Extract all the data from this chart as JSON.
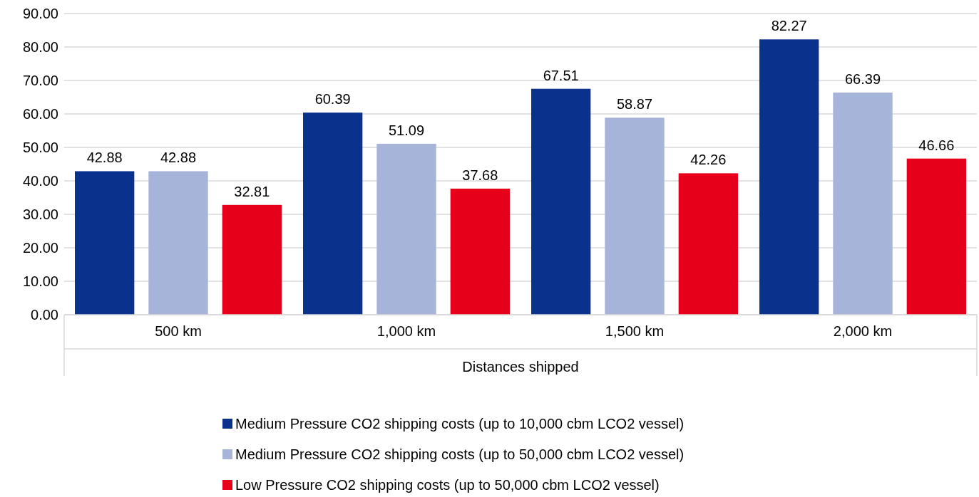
{
  "chart_data": {
    "type": "bar",
    "xlabel": "Distances shipped",
    "categories": [
      "500 km",
      "1,000 km",
      "1,500 km",
      "2,000 km"
    ],
    "series": [
      {
        "name": "Medium Pressure CO2 shipping costs (up to 10,000 cbm LCO2 vessel)",
        "color": "#0a318c",
        "values": [
          42.88,
          60.39,
          67.51,
          82.27
        ]
      },
      {
        "name": "Medium Pressure CO2 shipping costs (up to 50,000 cbm LCO2 vessel)",
        "color": "#a7b4d9",
        "values": [
          42.88,
          51.09,
          58.87,
          66.39
        ]
      },
      {
        "name": "Low Pressure CO2 shipping costs (up to 50,000 cbm LCO2 vessel)",
        "color": "#e60019",
        "values": [
          32.81,
          37.68,
          42.26,
          46.66
        ]
      }
    ],
    "ylim": [
      0,
      90
    ],
    "yticks": [
      {
        "value": 0,
        "label": "0.00"
      },
      {
        "value": 10,
        "label": "10.00"
      },
      {
        "value": 20,
        "label": "20.00"
      },
      {
        "value": 30,
        "label": "30.00"
      },
      {
        "value": 40,
        "label": "40.00"
      },
      {
        "value": 50,
        "label": "50.00"
      },
      {
        "value": 60,
        "label": "60.00"
      },
      {
        "value": 70,
        "label": "70.00"
      },
      {
        "value": 80,
        "label": "80.00"
      },
      {
        "value": 90,
        "label": "90.00"
      }
    ],
    "grid": "y",
    "legend": "bottom",
    "data_labels": true
  }
}
